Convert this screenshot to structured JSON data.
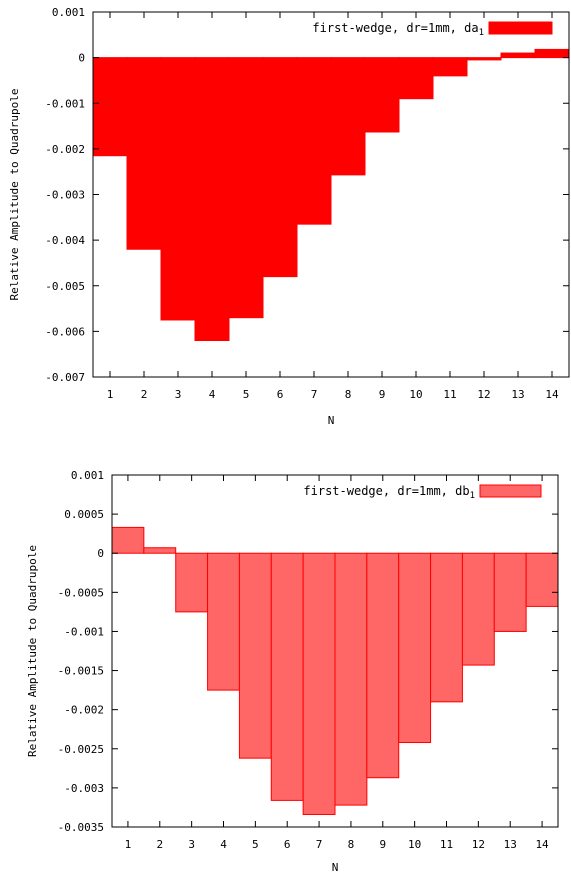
{
  "chart_data": [
    {
      "type": "bar",
      "title": "",
      "xlabel": "N",
      "ylabel": "Relative Amplitude to Quadrupole",
      "categories": [
        "1",
        "2",
        "3",
        "4",
        "5",
        "6",
        "7",
        "8",
        "9",
        "10",
        "11",
        "12",
        "13",
        "14"
      ],
      "ylim": [
        -0.007,
        0.001
      ],
      "yticks": [
        0.001,
        0,
        -0.001,
        -0.002,
        -0.003,
        -0.004,
        -0.005,
        -0.006,
        -0.007
      ],
      "ytick_labels": [
        "0.001",
        "0",
        "-0.001",
        "-0.002",
        "-0.003",
        "-0.004",
        "-0.005",
        "-0.006",
        "-0.007"
      ],
      "grid": false,
      "legend_position": "top-right",
      "series": [
        {
          "name": "first-wedge, dr=1mm, da",
          "name_subscript": "1",
          "color": "#ff0000",
          "edge_color": "#ff0000",
          "values": [
            -0.00215,
            -0.0042,
            -0.00575,
            -0.0062,
            -0.0057,
            -0.0048,
            -0.00365,
            -0.00257,
            -0.00163,
            -0.0009,
            -0.0004,
            -5e-05,
            0.0001,
            0.00018
          ]
        }
      ]
    },
    {
      "type": "bar",
      "title": "",
      "xlabel": "N",
      "ylabel": "Relative Amplitude to Quadrupole",
      "categories": [
        "1",
        "2",
        "3",
        "4",
        "5",
        "6",
        "7",
        "8",
        "9",
        "10",
        "11",
        "12",
        "13",
        "14"
      ],
      "ylim": [
        -0.0035,
        0.001
      ],
      "yticks": [
        0.001,
        0.0005,
        0,
        -0.0005,
        -0.001,
        -0.0015,
        -0.002,
        -0.0025,
        -0.003,
        -0.0035
      ],
      "ytick_labels": [
        "0.001",
        "0.0005",
        "0",
        "-0.0005",
        "-0.001",
        "-0.0015",
        "-0.002",
        "-0.0025",
        "-0.003",
        "-0.0035"
      ],
      "grid": false,
      "legend_position": "top-right",
      "series": [
        {
          "name": "first-wedge, dr=1mm, db",
          "name_subscript": "1",
          "color": "#ff6666",
          "edge_color": "#ff0000",
          "values": [
            0.00033,
            7e-05,
            -0.00075,
            -0.00175,
            -0.00262,
            -0.00316,
            -0.00334,
            -0.00322,
            -0.00287,
            -0.00242,
            -0.0019,
            -0.00143,
            -0.001,
            -0.00068
          ]
        }
      ]
    }
  ]
}
